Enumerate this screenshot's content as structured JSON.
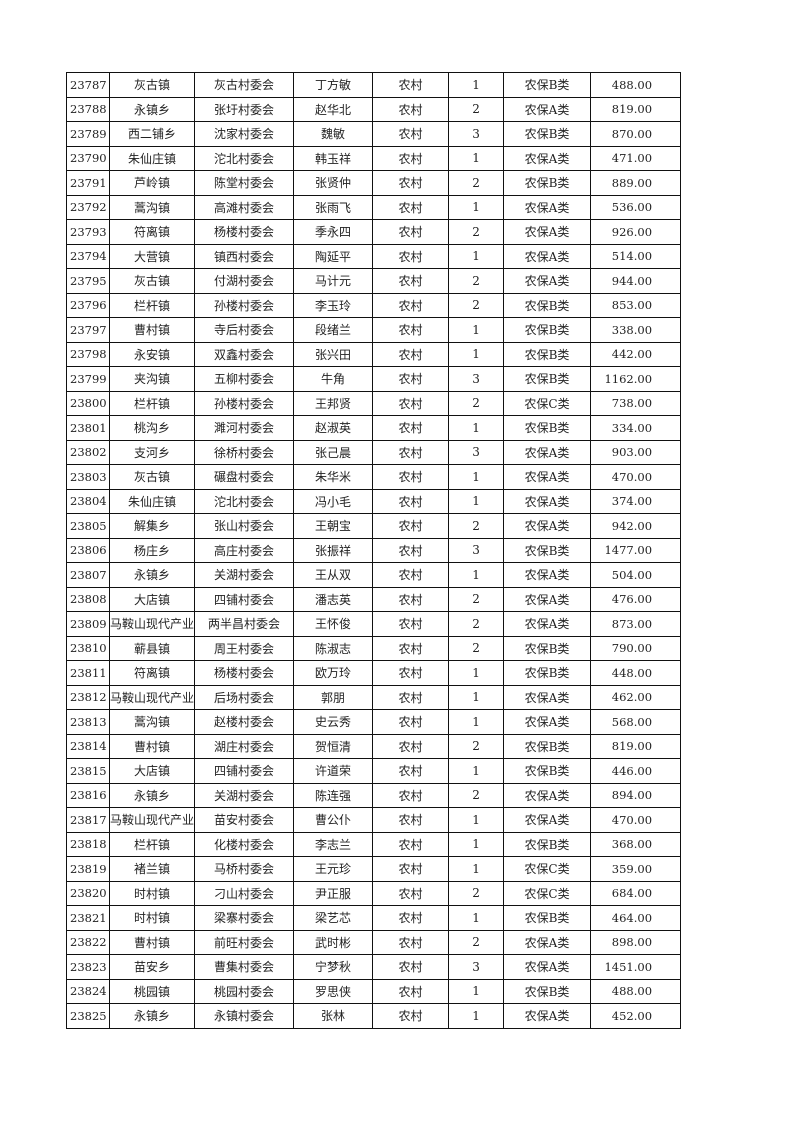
{
  "rows": [
    [
      "23787",
      "灰古镇",
      "灰古村委会",
      "丁方敏",
      "农村",
      "1",
      "农保B类",
      "488.00"
    ],
    [
      "23788",
      "永镇乡",
      "张圩村委会",
      "赵华北",
      "农村",
      "2",
      "农保A类",
      "819.00"
    ],
    [
      "23789",
      "西二铺乡",
      "沈家村委会",
      "魏敏",
      "农村",
      "3",
      "农保B类",
      "870.00"
    ],
    [
      "23790",
      "朱仙庄镇",
      "沱北村委会",
      "韩玉祥",
      "农村",
      "1",
      "农保A类",
      "471.00"
    ],
    [
      "23791",
      "芦岭镇",
      "陈堂村委会",
      "张贤仲",
      "农村",
      "2",
      "农保B类",
      "889.00"
    ],
    [
      "23792",
      "蒿沟镇",
      "高滩村委会",
      "张雨飞",
      "农村",
      "1",
      "农保A类",
      "536.00"
    ],
    [
      "23793",
      "符离镇",
      "杨楼村委会",
      "季永四",
      "农村",
      "2",
      "农保A类",
      "926.00"
    ],
    [
      "23794",
      "大营镇",
      "镇西村委会",
      "陶延平",
      "农村",
      "1",
      "农保A类",
      "514.00"
    ],
    [
      "23795",
      "灰古镇",
      "付湖村委会",
      "马计元",
      "农村",
      "2",
      "农保A类",
      "944.00"
    ],
    [
      "23796",
      "栏杆镇",
      "孙楼村委会",
      "李玉玲",
      "农村",
      "2",
      "农保B类",
      "853.00"
    ],
    [
      "23797",
      "曹村镇",
      "寺后村委会",
      "段绪兰",
      "农村",
      "1",
      "农保B类",
      "338.00"
    ],
    [
      "23798",
      "永安镇",
      "双鑫村委会",
      "张兴田",
      "农村",
      "1",
      "农保B类",
      "442.00"
    ],
    [
      "23799",
      "夹沟镇",
      "五柳村委会",
      "牛角",
      "农村",
      "3",
      "农保B类",
      "1162.00"
    ],
    [
      "23800",
      "栏杆镇",
      "孙楼村委会",
      "王邦贤",
      "农村",
      "2",
      "农保C类",
      "738.00"
    ],
    [
      "23801",
      "桃沟乡",
      "濉河村委会",
      "赵淑英",
      "农村",
      "1",
      "农保B类",
      "334.00"
    ],
    [
      "23802",
      "支河乡",
      "徐桥村委会",
      "张己晨",
      "农村",
      "3",
      "农保A类",
      "903.00"
    ],
    [
      "23803",
      "灰古镇",
      "碾盘村委会",
      "朱华米",
      "农村",
      "1",
      "农保A类",
      "470.00"
    ],
    [
      "23804",
      "朱仙庄镇",
      "沱北村委会",
      "冯小毛",
      "农村",
      "1",
      "农保A类",
      "374.00"
    ],
    [
      "23805",
      "解集乡",
      "张山村委会",
      "王朝宝",
      "农村",
      "2",
      "农保A类",
      "942.00"
    ],
    [
      "23806",
      "杨庄乡",
      "高庄村委会",
      "张振祥",
      "农村",
      "3",
      "农保B类",
      "1477.00"
    ],
    [
      "23807",
      "永镇乡",
      "关湖村委会",
      "王从双",
      "农村",
      "1",
      "农保A类",
      "504.00"
    ],
    [
      "23808",
      "大店镇",
      "四铺村委会",
      "潘志英",
      "农村",
      "2",
      "农保A类",
      "476.00"
    ],
    [
      "23809",
      "马鞍山现代产业",
      "两半昌村委会",
      "王怀俊",
      "农村",
      "2",
      "农保A类",
      "873.00"
    ],
    [
      "23810",
      "蕲县镇",
      "周王村委会",
      "陈淑志",
      "农村",
      "2",
      "农保B类",
      "790.00"
    ],
    [
      "23811",
      "符离镇",
      "杨楼村委会",
      "欧万玲",
      "农村",
      "1",
      "农保B类",
      "448.00"
    ],
    [
      "23812",
      "马鞍山现代产业",
      "后场村委会",
      "郭朋",
      "农村",
      "1",
      "农保A类",
      "462.00"
    ],
    [
      "23813",
      "蒿沟镇",
      "赵楼村委会",
      "史云秀",
      "农村",
      "1",
      "农保A类",
      "568.00"
    ],
    [
      "23814",
      "曹村镇",
      "湖庄村委会",
      "贺恒清",
      "农村",
      "2",
      "农保B类",
      "819.00"
    ],
    [
      "23815",
      "大店镇",
      "四铺村委会",
      "许道荣",
      "农村",
      "1",
      "农保B类",
      "446.00"
    ],
    [
      "23816",
      "永镇乡",
      "关湖村委会",
      "陈连强",
      "农村",
      "2",
      "农保A类",
      "894.00"
    ],
    [
      "23817",
      "马鞍山现代产业",
      "苗安村委会",
      "曹公仆",
      "农村",
      "1",
      "农保A类",
      "470.00"
    ],
    [
      "23818",
      "栏杆镇",
      "化楼村委会",
      "李志兰",
      "农村",
      "1",
      "农保B类",
      "368.00"
    ],
    [
      "23819",
      "褚兰镇",
      "马桥村委会",
      "王元珍",
      "农村",
      "1",
      "农保C类",
      "359.00"
    ],
    [
      "23820",
      "时村镇",
      "刁山村委会",
      "尹正服",
      "农村",
      "2",
      "农保C类",
      "684.00"
    ],
    [
      "23821",
      "时村镇",
      "梁寨村委会",
      "梁艺芯",
      "农村",
      "1",
      "农保B类",
      "464.00"
    ],
    [
      "23822",
      "曹村镇",
      "前旺村委会",
      "武时彬",
      "农村",
      "2",
      "农保A类",
      "898.00"
    ],
    [
      "23823",
      "苗安乡",
      "曹集村委会",
      "宁梦秋",
      "农村",
      "3",
      "农保A类",
      "1451.00"
    ],
    [
      "23824",
      "桃园镇",
      "桃园村委会",
      "罗思侠",
      "农村",
      "1",
      "农保B类",
      "488.00"
    ],
    [
      "23825",
      "永镇乡",
      "永镇村委会",
      "张林",
      "农村",
      "1",
      "农保A类",
      "452.00"
    ]
  ]
}
